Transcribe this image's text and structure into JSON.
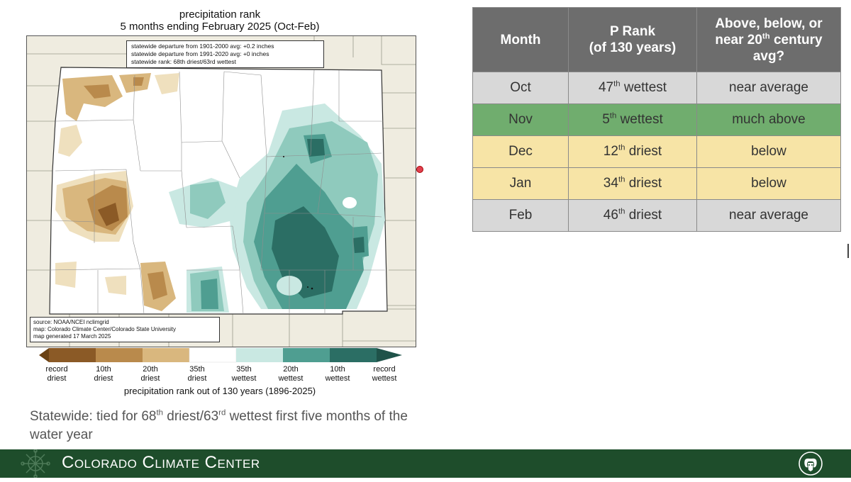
{
  "map": {
    "title_line1": "precipitation rank",
    "title_line2": "5 months ending February 2025 (Oct-Feb)",
    "stats": [
      "statewide departure from 1901-2000 avg: +0.2 inches",
      "statewide departure from 1991-2020 avg: +0 inches",
      "statewide rank: 68th driest/63rd wettest"
    ],
    "source": [
      "source: NOAA/NCEI nclimgrid",
      "map: Colorado Climate Center/Colorado State University",
      "map generated 17 March 2025"
    ],
    "colors": {
      "record_dry": "#8b5a26",
      "dry10": "#b98a4c",
      "dry20": "#d9b77e",
      "dry35": "#efe0be",
      "neutral": "#ffffff",
      "wet35": "#c9e8e2",
      "wet20": "#8fcabd",
      "wet10": "#4f9e91",
      "record_wet": "#2b6e64",
      "land_outside": "#efece0"
    }
  },
  "legend": {
    "labels": [
      {
        "line1": "record",
        "line2": "driest"
      },
      {
        "line1": "10th",
        "line2": "driest"
      },
      {
        "line1": "20th",
        "line2": "driest"
      },
      {
        "line1": "35th",
        "line2": "driest"
      },
      {
        "line1": "35th",
        "line2": "wettest"
      },
      {
        "line1": "20th",
        "line2": "wettest"
      },
      {
        "line1": "10th",
        "line2": "wettest"
      },
      {
        "line1": "record",
        "line2": "wettest"
      }
    ],
    "caption": "precipitation rank out of 130 years (1896-2025)"
  },
  "statewide": {
    "pre": "Statewide: tied for 68",
    "sup1": "th",
    "mid": " driest/63",
    "sup2": "rd",
    "post": " wettest first five months of the water year"
  },
  "table": {
    "headers": [
      "Month",
      "P Rank (of 130 years)",
      "Above, below, or near 20th century avg?"
    ],
    "header2_line1": "P Rank",
    "header2_line2": "(of 130 years)",
    "header3_line1": "Above, below, or",
    "header3_line2_pre": "near 20",
    "header3_line2_sup": "th",
    "header3_line2_post": " century",
    "header3_line3": "avg?",
    "rows": [
      {
        "month": "Oct",
        "num": "47",
        "sup": "th",
        "word": " wettest",
        "status": "near average",
        "color": "#d8d8d8"
      },
      {
        "month": "Nov",
        "num": "5",
        "sup": "th",
        "word": " wettest",
        "status": "much above",
        "color": "#70ad6e"
      },
      {
        "month": "Dec",
        "num": "12",
        "sup": "th",
        "word": " driest",
        "status": "below",
        "color": "#f7e4a6"
      },
      {
        "month": "Jan",
        "num": "34",
        "sup": "th",
        "word": " driest",
        "status": "below",
        "color": "#f7e4a6"
      },
      {
        "month": "Feb",
        "num": "46",
        "sup": "th",
        "word": " driest",
        "status": "near average",
        "color": "#d8d8d8"
      }
    ]
  },
  "footer": {
    "title": "Colorado Climate Center"
  }
}
